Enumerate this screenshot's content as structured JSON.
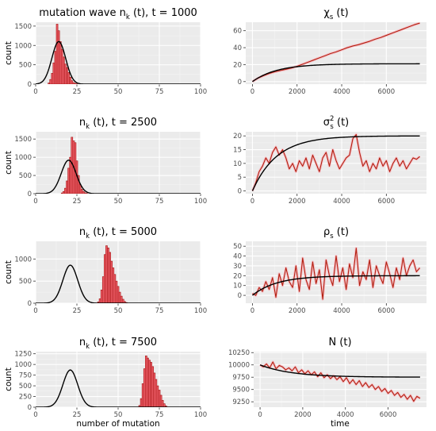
{
  "chart_data": [
    {
      "id": "hist1",
      "type": "bar",
      "title": "mutation wave n",
      "title_sub": "k",
      "title_rest": " (t), t = 1000",
      "ylabel": "count",
      "xlabel": "",
      "xlim": [
        0,
        100
      ],
      "ylim": [
        0,
        1600
      ],
      "xticks": [
        0,
        25,
        50,
        75,
        100
      ],
      "yticks": [
        0,
        500,
        1000,
        1500
      ],
      "grid": true,
      "bars": {
        "x": [
          8,
          9,
          10,
          11,
          12,
          13,
          14,
          15,
          16,
          17,
          18,
          19,
          20,
          21,
          22,
          23,
          24,
          25
        ],
        "y": [
          30,
          120,
          280,
          550,
          850,
          1550,
          1380,
          1100,
          900,
          700,
          520,
          430,
          300,
          180,
          90,
          40,
          20,
          8
        ]
      },
      "curve": {
        "mean": 14,
        "sd": 4.2,
        "peak": 1100
      }
    },
    {
      "id": "hist2",
      "type": "bar",
      "title": "n",
      "title_sub": "k",
      "title_rest": " (t), t = 2500",
      "ylabel": "count",
      "xlabel": "",
      "xlim": [
        0,
        100
      ],
      "ylim": [
        0,
        1700
      ],
      "xticks": [
        0,
        25,
        50,
        75,
        100
      ],
      "yticks": [
        0,
        500,
        1000,
        1500
      ],
      "grid": true,
      "bars": {
        "x": [
          16,
          17,
          18,
          19,
          20,
          21,
          22,
          23,
          24,
          25,
          26,
          27,
          28,
          29,
          30,
          31
        ],
        "y": [
          20,
          60,
          150,
          350,
          700,
          1000,
          1550,
          1450,
          1400,
          900,
          500,
          250,
          120,
          60,
          25,
          10
        ]
      },
      "curve": {
        "mean": 20,
        "sd": 4.5,
        "peak": 920
      }
    },
    {
      "id": "hist3",
      "type": "bar",
      "title": "n",
      "title_sub": "k",
      "title_rest": " (t), t = 5000",
      "ylabel": "count",
      "xlabel": "",
      "xlim": [
        0,
        100
      ],
      "ylim": [
        0,
        1400
      ],
      "xticks": [
        0,
        25,
        50,
        75,
        100
      ],
      "yticks": [
        0,
        500,
        1000
      ],
      "grid": true,
      "bars": {
        "x": [
          38,
          39,
          40,
          41,
          42,
          43,
          44,
          45,
          46,
          47,
          48,
          49,
          50,
          51,
          52,
          53,
          54,
          55
        ],
        "y": [
          30,
          100,
          300,
          600,
          1100,
          1300,
          1250,
          1150,
          950,
          800,
          650,
          500,
          380,
          250,
          160,
          90,
          40,
          15
        ]
      },
      "curve": {
        "mean": 21,
        "sd": 4.5,
        "peak": 860
      }
    },
    {
      "id": "hist4",
      "type": "bar",
      "title": "n",
      "title_sub": "k",
      "title_rest": " (t), t = 7500",
      "ylabel": "count",
      "xlabel": "number of mutation",
      "xlim": [
        0,
        100
      ],
      "ylim": [
        0,
        1300
      ],
      "xticks": [
        0,
        25,
        50,
        75,
        100
      ],
      "yticks": [
        0,
        250,
        500,
        750,
        1000,
        1250
      ],
      "grid": true,
      "bars": {
        "x": [
          63,
          64,
          65,
          66,
          67,
          68,
          69,
          70,
          71,
          72,
          73,
          74,
          75,
          76,
          77,
          78,
          79
        ],
        "y": [
          40,
          200,
          550,
          900,
          1200,
          1150,
          1100,
          1050,
          950,
          800,
          650,
          500,
          400,
          280,
          160,
          80,
          30
        ]
      },
      "curve": {
        "mean": 21,
        "sd": 4.5,
        "peak": 870
      }
    },
    {
      "id": "chi",
      "type": "line",
      "title": "χ",
      "title_sub": "s",
      "title_rest": " (t)",
      "xlabel": "",
      "xlim": [
        -300,
        7800
      ],
      "ylim": [
        -3,
        70
      ],
      "xticks": [
        0,
        2000,
        4000,
        6000
      ],
      "yticks": [
        0,
        20,
        40,
        60
      ],
      "grid": true,
      "series": [
        {
          "x": [
            0,
            250,
            500,
            750,
            1000,
            1250,
            1500,
            1750,
            2000,
            2250,
            2500,
            2750,
            3000,
            3250,
            3500,
            3750,
            4000,
            4250,
            4500,
            4750,
            5000,
            5250,
            5500,
            5750,
            6000,
            6250,
            6500,
            6750,
            7000,
            7250,
            7500
          ],
          "y": [
            0,
            4,
            7,
            9.5,
            11.5,
            13,
            14.5,
            16,
            18,
            20.5,
            23,
            25.5,
            28,
            30.5,
            33,
            35,
            37.5,
            40,
            42,
            43.5,
            45.5,
            47.5,
            50,
            52,
            54.5,
            57,
            59.5,
            62,
            64.5,
            67,
            69
          ]
        }
      ],
      "theory": {
        "asymptote": 21,
        "tau": 1100
      }
    },
    {
      "id": "sigma",
      "type": "line",
      "title": "σ",
      "title_sub": "s",
      "title_sup": "2",
      "title_rest": " (t)",
      "xlabel": "",
      "xlim": [
        -300,
        7800
      ],
      "ylim": [
        -1,
        21.5
      ],
      "xticks": [
        0,
        2000,
        4000,
        6000
      ],
      "yticks": [
        0,
        5,
        10,
        15,
        20
      ],
      "grid": true,
      "series": [
        {
          "x": [
            0,
            150,
            300,
            450,
            600,
            750,
            900,
            1050,
            1200,
            1350,
            1500,
            1650,
            1800,
            1950,
            2100,
            2250,
            2400,
            2550,
            2700,
            2850,
            3000,
            3150,
            3300,
            3450,
            3600,
            3750,
            3900,
            4050,
            4200,
            4350,
            4500,
            4650,
            4800,
            4950,
            5100,
            5250,
            5400,
            5550,
            5700,
            5850,
            6000,
            6150,
            6300,
            6450,
            6600,
            6750,
            6900,
            7050,
            7200,
            7350,
            7500
          ],
          "y": [
            0,
            3,
            7,
            9,
            12,
            10,
            14,
            16,
            13,
            15,
            12,
            8,
            10,
            7,
            11,
            9,
            12,
            8,
            13,
            10,
            7,
            12,
            14,
            9,
            15,
            11,
            8,
            10,
            12,
            13,
            19,
            20.5,
            14,
            9,
            11,
            7,
            10,
            8,
            12,
            9,
            11,
            7,
            10,
            12,
            9,
            11,
            8,
            10,
            12,
            11.5,
            12.5
          ]
        }
      ],
      "theory": {
        "asymptote": 20,
        "tau": 1100
      }
    },
    {
      "id": "rho",
      "type": "line",
      "title": "ρ",
      "title_sub": "s",
      "title_rest": " (t)",
      "xlabel": "",
      "xlim": [
        -300,
        7800
      ],
      "ylim": [
        -8,
        55
      ],
      "xticks": [
        0,
        2000,
        4000,
        6000
      ],
      "yticks": [
        0,
        10,
        20,
        30,
        40,
        50
      ],
      "grid": true,
      "series": [
        {
          "x": [
            0,
            150,
            300,
            450,
            600,
            750,
            900,
            1050,
            1200,
            1350,
            1500,
            1650,
            1800,
            1950,
            2100,
            2250,
            2400,
            2550,
            2700,
            2850,
            3000,
            3150,
            3300,
            3450,
            3600,
            3750,
            3900,
            4050,
            4200,
            4350,
            4500,
            4650,
            4800,
            4950,
            5100,
            5250,
            5400,
            5550,
            5700,
            5850,
            6000,
            6150,
            6300,
            6450,
            6600,
            6750,
            6900,
            7050,
            7200,
            7350,
            7500
          ],
          "y": [
            2,
            0,
            8,
            4,
            14,
            6,
            18,
            -2,
            22,
            10,
            28,
            14,
            8,
            30,
            4,
            38,
            16,
            6,
            34,
            12,
            26,
            -4,
            36,
            20,
            10,
            40,
            14,
            28,
            6,
            32,
            18,
            48,
            10,
            24,
            16,
            36,
            8,
            30,
            20,
            12,
            34,
            22,
            8,
            28,
            16,
            38,
            20,
            30,
            36,
            24,
            28
          ]
        }
      ],
      "theory": {
        "asymptote": 20,
        "tau": 1100
      }
    },
    {
      "id": "N",
      "type": "line",
      "title": "N (t)",
      "xlabel": "time",
      "xlim": [
        -300,
        7800
      ],
      "ylim": [
        9140,
        10270
      ],
      "xticks": [
        0,
        2000,
        4000,
        6000
      ],
      "yticks": [
        9250,
        9500,
        9750,
        10000,
        10250
      ],
      "grid": true,
      "series": [
        {
          "x": [
            0,
            150,
            300,
            450,
            600,
            750,
            900,
            1050,
            1200,
            1350,
            1500,
            1650,
            1800,
            1950,
            2100,
            2250,
            2400,
            2550,
            2700,
            2850,
            3000,
            3150,
            3300,
            3450,
            3600,
            3750,
            3900,
            4050,
            4200,
            4350,
            4500,
            4650,
            4800,
            4950,
            5100,
            5250,
            5400,
            5550,
            5700,
            5850,
            6000,
            6150,
            6300,
            6450,
            6600,
            6750,
            6900,
            7050,
            7200,
            7350,
            7500
          ],
          "y": [
            10000,
            9960,
            10020,
            9940,
            10060,
            9920,
            9990,
            9960,
            9900,
            9940,
            9880,
            9960,
            9840,
            9900,
            9820,
            9880,
            9800,
            9860,
            9760,
            9840,
            9740,
            9800,
            9720,
            9780,
            9700,
            9760,
            9660,
            9740,
            9620,
            9700,
            9600,
            9680,
            9560,
            9640,
            9540,
            9600,
            9500,
            9560,
            9460,
            9520,
            9420,
            9480,
            9380,
            9440,
            9340,
            9400,
            9300,
            9380,
            9260,
            9360,
            9320
          ]
        }
      ],
      "theory": {
        "start": 10000,
        "asymptote": 9750,
        "tau": 1500
      }
    }
  ]
}
